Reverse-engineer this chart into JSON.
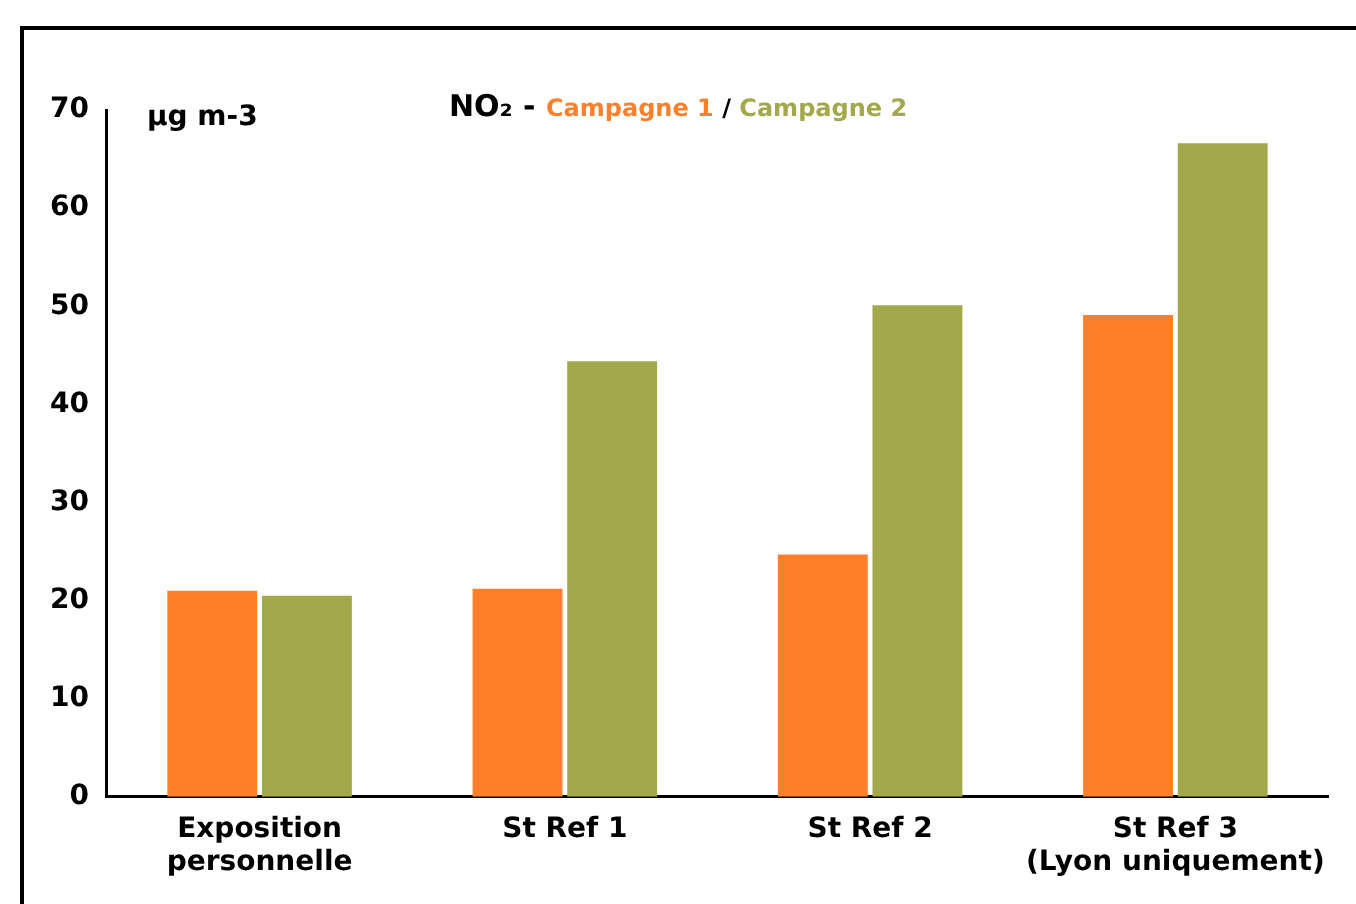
{
  "chart_data": {
    "type": "bar",
    "title": "NO₂ -",
    "ylabel": "µg m-3",
    "annotations": [
      "/"
    ],
    "categories": [
      "Exposition\npersonnelle",
      "St Ref 1",
      "St Ref 2",
      "St Ref 3\n(Lyon uniquement)"
    ],
    "series": [
      {
        "name": "Campagne 1",
        "color": "#ff7f2a",
        "values": [
          21.0,
          21.2,
          24.7,
          49.1
        ]
      },
      {
        "name": "Campagne 2",
        "color": "#a3a84a",
        "values": [
          20.5,
          44.4,
          50.1,
          66.6
        ]
      }
    ],
    "ylim": [
      0,
      70
    ],
    "yticks": [
      0,
      10,
      20,
      30,
      40,
      50,
      60,
      70
    ],
    "grid": false,
    "legend": "top"
  }
}
